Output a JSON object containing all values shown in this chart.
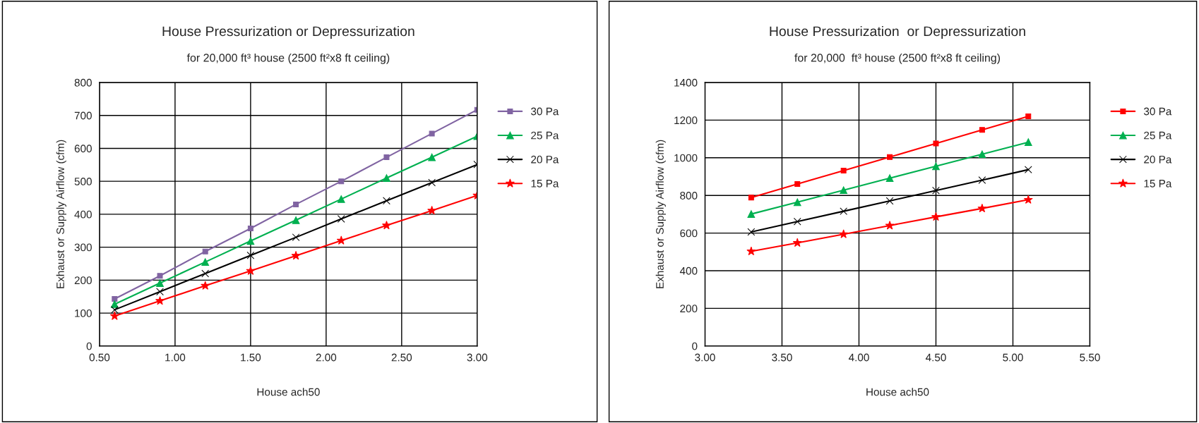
{
  "chart_data": [
    {
      "type": "line",
      "title": "House Pressurization or Depressurization",
      "subtitle": "for 20,000 ft³ house (2500 ft²x8 ft ceiling)",
      "xlabel": "House ach50",
      "ylabel": "Exhaust or Supply Airflow (cfm)",
      "x": [
        0.6,
        0.9,
        1.2,
        1.5,
        1.8,
        2.1,
        2.4,
        2.7,
        3.0
      ],
      "series": [
        {
          "name": "30 Pa",
          "color": "#8064a2",
          "marker": "square",
          "values": [
            143,
            213,
            287,
            357,
            430,
            500,
            573,
            645,
            717
          ]
        },
        {
          "name": "25 Pa",
          "color": "#00b050",
          "marker": "triangle",
          "values": [
            127,
            191,
            255,
            319,
            382,
            446,
            510,
            573,
            637
          ]
        },
        {
          "name": "20 Pa",
          "color": "#000000",
          "marker": "cross",
          "values": [
            110,
            165,
            220,
            275,
            330,
            386,
            441,
            496,
            551
          ]
        },
        {
          "name": "15 Pa",
          "color": "#ff0000",
          "marker": "star",
          "values": [
            91,
            137,
            183,
            228,
            274,
            320,
            366,
            411,
            457
          ]
        }
      ],
      "xlim": [
        0.5,
        3.0
      ],
      "xticks": [
        {
          "value": 0.5,
          "label": "0.50"
        },
        {
          "value": 1.0,
          "label": "1.00"
        },
        {
          "value": 1.5,
          "label": "1.50"
        },
        {
          "value": 2.0,
          "label": "2.00"
        },
        {
          "value": 2.5,
          "label": "2.50"
        },
        {
          "value": 3.0,
          "label": "3.00"
        }
      ],
      "ylim": [
        0,
        800
      ],
      "yticks": [
        0,
        100,
        200,
        300,
        400,
        500,
        600,
        700,
        800
      ],
      "grid": true,
      "legend": "right",
      "line_style": "solid"
    },
    {
      "type": "line",
      "title": "House Pressurization  or Depressurization",
      "subtitle": "for 20,000  ft³ house (2500 ft²x8 ft ceiling)",
      "xlabel": "House ach50",
      "ylabel": "Exhaust or Supply Airflow (cfm)",
      "x": [
        3.3,
        3.6,
        3.9,
        4.2,
        4.5,
        4.8,
        5.1
      ],
      "series": [
        {
          "name": "30 Pa",
          "color": "#ff0000",
          "marker": "square",
          "values": [
            789,
            861,
            932,
            1004,
            1076,
            1148,
            1220
          ]
        },
        {
          "name": "25 Pa",
          "color": "#00b050",
          "marker": "triangle",
          "values": [
            701,
            764,
            828,
            892,
            955,
            1019,
            1083
          ]
        },
        {
          "name": "20 Pa",
          "color": "#000000",
          "marker": "cross",
          "values": [
            606,
            661,
            716,
            771,
            826,
            881,
            937
          ]
        },
        {
          "name": "15 Pa",
          "color": "#ff0000",
          "marker": "star",
          "values": [
            503,
            548,
            594,
            640,
            686,
            731,
            777
          ]
        }
      ],
      "xlim": [
        3.0,
        5.5
      ],
      "xticks": [
        {
          "value": 3.0,
          "label": "3.00"
        },
        {
          "value": 3.5,
          "label": "3.50"
        },
        {
          "value": 4.0,
          "label": "4.00"
        },
        {
          "value": 4.5,
          "label": "4.50"
        },
        {
          "value": 5.0,
          "label": "5.00"
        },
        {
          "value": 5.5,
          "label": "5.50"
        }
      ],
      "ylim": [
        0,
        1400
      ],
      "yticks": [
        0,
        200,
        400,
        600,
        800,
        1000,
        1200,
        1400
      ],
      "grid": true,
      "legend": "right",
      "line_style": "solid"
    }
  ]
}
